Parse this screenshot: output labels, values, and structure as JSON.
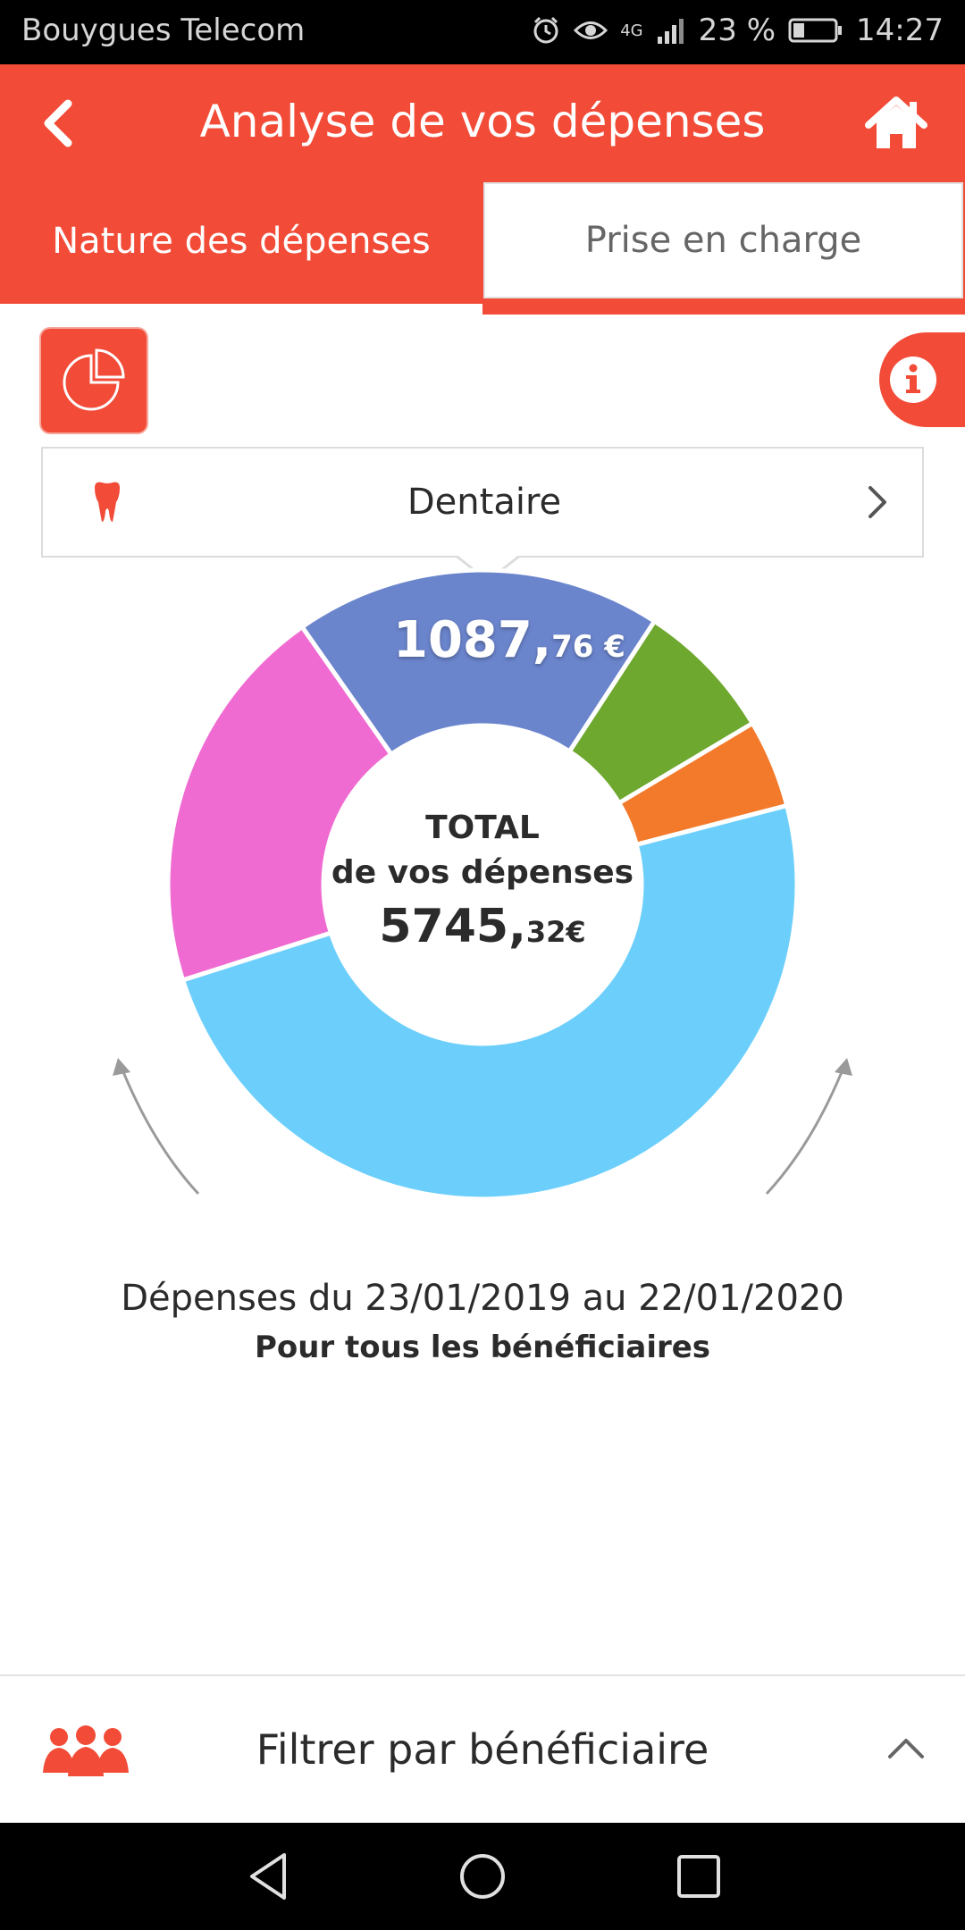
{
  "status_bar": {
    "carrier": "Bouygues Telecom",
    "network": "4G",
    "battery": "23 %",
    "time": "14:27",
    "icons": [
      "alarm-icon",
      "eye-icon",
      "signal-icon",
      "battery-icon"
    ]
  },
  "header": {
    "title": "Analyse de vos dépenses",
    "back_icon": "chevron-left-icon",
    "home_icon": "home-icon"
  },
  "tabs": [
    {
      "label": "Nature des dépenses",
      "active": false
    },
    {
      "label": "Prise en charge",
      "active": true
    }
  ],
  "chart_type_icon": "pie-chart-icon",
  "info_icon": "info-icon",
  "category": {
    "label": "Dentaire",
    "icon": "tooth-icon"
  },
  "chart_data": {
    "type": "pie",
    "selected_segment": {
      "label": "Dentaire",
      "value_int": "1087,",
      "value_cents": "76 €"
    },
    "center": {
      "line1": "TOTAL",
      "line2": "de vos dépenses",
      "amount_int": "5745,",
      "amount_cents": "32€"
    },
    "slices": [
      {
        "value": 1087.76,
        "color": "#6b85cd"
      },
      {
        "value": 415,
        "color": "#6ea82f"
      },
      {
        "value": 260,
        "color": "#f47a2b"
      },
      {
        "value": 2823,
        "color": "#6ccffb"
      },
      {
        "value": 1160,
        "color": "#f06bd1"
      }
    ],
    "start_angle_deg": -35
  },
  "period": "Dépenses du 23/01/2019 au 22/01/2020",
  "beneficiaries": "Pour tous les bénéficiaires",
  "filter": {
    "label": "Filtrer par bénéficiaire",
    "icon": "people-icon",
    "chevron": "chevron-up-icon"
  },
  "colors": {
    "accent": "#f24b37"
  }
}
